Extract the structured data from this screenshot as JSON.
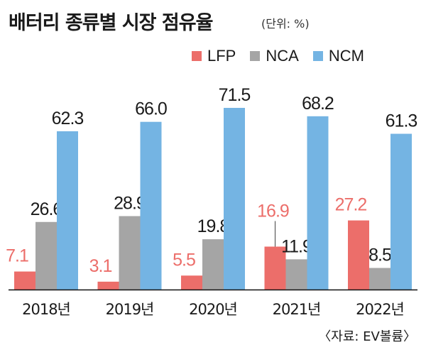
{
  "header": {
    "title": "배터리 종류별 시장 점유율",
    "unit": "(단위: %)"
  },
  "legend": [
    {
      "label": "LFP",
      "color": "#ec6e6a"
    },
    {
      "label": "NCA",
      "color": "#a5a5a5"
    },
    {
      "label": "NCM",
      "color": "#74b4e3"
    }
  ],
  "source": "〈자료: EV볼륨〉",
  "chart_data": {
    "type": "bar",
    "categories": [
      "2018년",
      "2019년",
      "2020년",
      "2021년",
      "2022년"
    ],
    "series": [
      {
        "name": "LFP",
        "values": [
          7.1,
          3.1,
          5.5,
          16.9,
          27.2
        ],
        "labels": [
          "7.1",
          "3.1",
          "5.5",
          "16.9",
          "27.2"
        ],
        "color": "#ec6e6a",
        "label_color": "#ec6e6a"
      },
      {
        "name": "NCA",
        "values": [
          26.6,
          28.9,
          19.8,
          11.9,
          8.5
        ],
        "labels": [
          "26.6",
          "28.9",
          "19.8",
          "11.9",
          "8.5"
        ],
        "color": "#a5a5a5",
        "label_color": "#1a1a1a"
      },
      {
        "name": "NCM",
        "values": [
          62.3,
          66.0,
          71.5,
          68.2,
          61.3
        ],
        "labels": [
          "62.3",
          "66.0",
          "71.5",
          "68.2",
          "61.3"
        ],
        "color": "#74b4e3",
        "label_color": "#1a1a1a"
      }
    ],
    "ylim": [
      0,
      72
    ],
    "grid": false,
    "legend_position": "top-right"
  }
}
